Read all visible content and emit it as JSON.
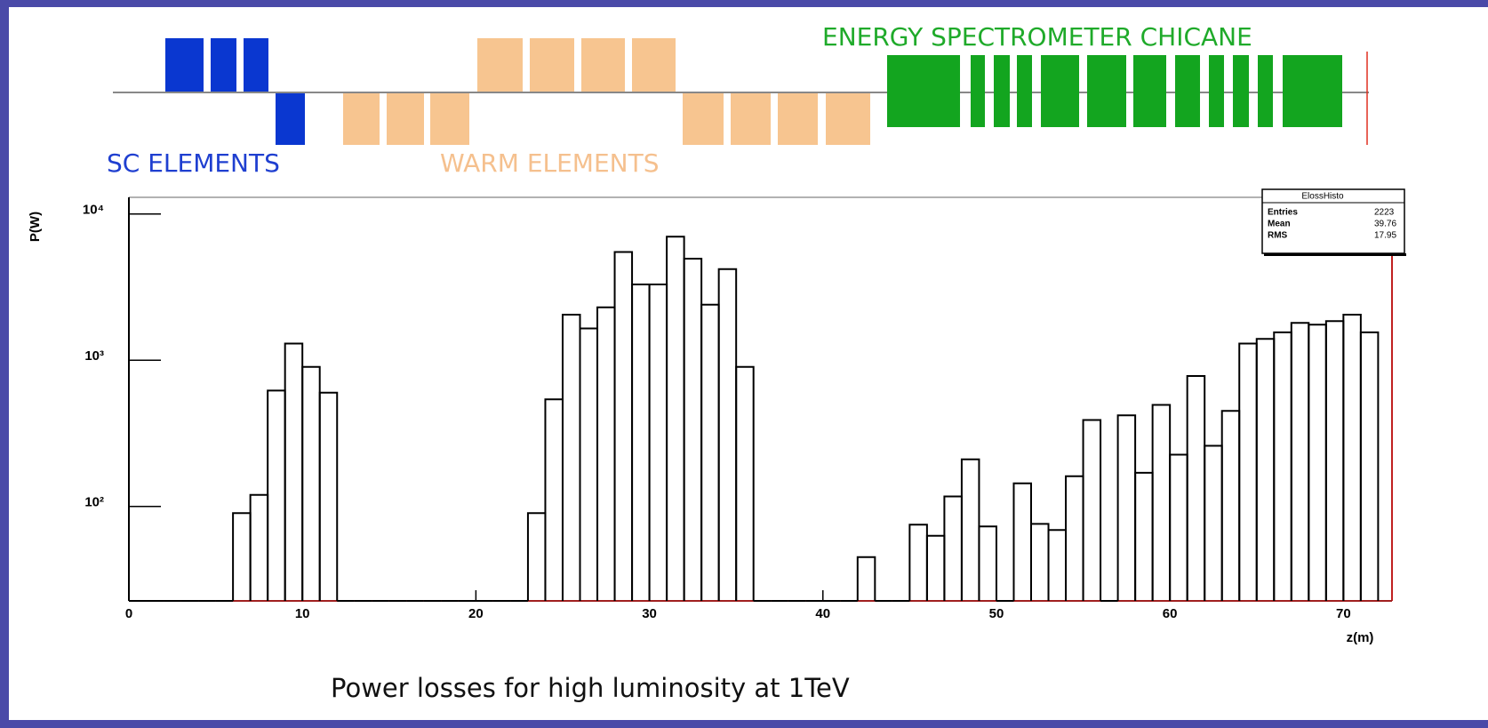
{
  "diagram": {
    "sc_label": "SC ELEMENTS",
    "warm_label": "WARM ELEMENTS",
    "chicane_label": "ENERGY SPECTROMETER CHICANE"
  },
  "chart_data": {
    "type": "histogram",
    "title": "Power losses for high luminosity at 1TeV",
    "xlabel": "z(m)",
    "ylabel": "P(W)",
    "log_y": true,
    "color": "#000000",
    "bins": [
      0,
      1,
      2,
      3,
      4,
      5,
      6,
      7,
      8,
      9,
      10,
      11,
      12,
      13,
      14,
      15,
      16,
      17,
      18,
      19,
      20,
      21,
      22,
      23,
      24,
      25,
      26,
      27,
      28,
      29,
      30,
      31,
      32,
      33,
      34,
      35,
      36,
      37,
      38,
      39,
      40,
      41,
      42,
      43,
      44,
      45,
      46,
      47,
      48,
      49,
      50,
      51,
      52,
      53,
      54,
      55,
      56,
      57,
      58,
      59,
      60,
      61,
      62,
      63,
      64,
      65,
      66,
      67,
      68,
      69,
      70,
      71,
      72
    ],
    "values": [
      0,
      0,
      0,
      0,
      0,
      0,
      90,
      120,
      620,
      1300,
      900,
      600,
      0,
      0,
      0,
      0,
      0,
      0,
      0,
      0,
      0,
      0,
      0,
      90,
      540,
      2050,
      1650,
      2300,
      5500,
      3300,
      3300,
      7000,
      4950,
      2400,
      4200,
      900,
      0,
      0,
      0,
      0,
      0,
      0,
      45,
      0,
      0,
      75,
      63,
      117,
      210,
      73,
      0,
      144,
      76,
      69,
      161,
      390,
      0,
      420,
      170,
      495,
      226,
      780,
      260,
      450,
      1300,
      1400,
      1550,
      1800,
      1750,
      1850,
      2050,
      1550
    ],
    "xlim": [
      0,
      72.8
    ],
    "ylim": [
      22.6,
      13000
    ],
    "xticks": [
      0,
      10,
      20,
      30,
      40,
      50,
      60,
      70
    ],
    "yticks": [
      {
        "value": 100,
        "label": "10²"
      },
      {
        "value": 1000,
        "label": "10³"
      },
      {
        "value": 10000,
        "label": "10⁴"
      }
    ],
    "stats": {
      "name": "ElossHisto",
      "rows": [
        [
          "Entries",
          "2223"
        ],
        [
          "Mean",
          "39.76"
        ],
        [
          "RMS",
          "17.95"
        ]
      ]
    }
  }
}
